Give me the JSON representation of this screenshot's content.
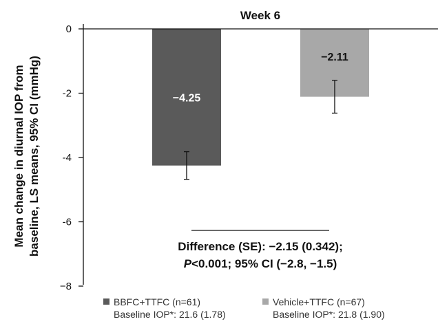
{
  "chart_data": {
    "type": "bar",
    "title": "Week 6",
    "ylabel_line1": "Mean change in diurnal IOP from",
    "ylabel_line2": "baseline, LS means, 95% CI (mmHg)",
    "ylim": [
      -8,
      0
    ],
    "yticks": [
      0,
      -2,
      -4,
      -6,
      -8
    ],
    "ytick_labels": [
      "0",
      "-2",
      "-4",
      "-6",
      "−8"
    ],
    "series": [
      {
        "name": "BBFC+TTFC (n=61)",
        "baseline": "Baseline IOP*: 21.6 (1.78)",
        "value": -4.25,
        "label": "−4.25",
        "ci": [
          -4.68,
          -3.82
        ],
        "color": "#5a5a5a",
        "label_color": "#ffffff"
      },
      {
        "name": "Vehicle+TTFC (n=67)",
        "baseline": "Baseline IOP*: 21.8 (1.90)",
        "value": -2.11,
        "label": "−2.11",
        "ci": [
          -2.62,
          -1.6
        ],
        "color": "#a8a8a8",
        "label_color": "#111111"
      }
    ],
    "annotation": {
      "line1": "Difference (SE): −2.15 (0.342);",
      "line2_italic": "P",
      "line2_rest": "<0.001; 95% CI (−2.8, −1.5)"
    }
  }
}
